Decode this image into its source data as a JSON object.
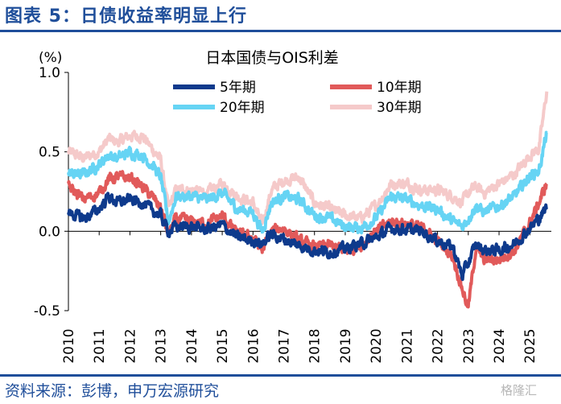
{
  "figure_title": "图表 5：日债收益率明显上行",
  "source": "资料来源：彭博，申万宏源研究",
  "watermark": "格隆汇",
  "chart_data": {
    "type": "line",
    "title": "日本国债与OIS利差",
    "ylabel": "(%)",
    "xlabel": "",
    "ylim": [
      -0.5,
      1.0
    ],
    "xlim": [
      2010.0,
      2025.7
    ],
    "y_ticks": [
      1.0,
      0.5,
      0.0,
      -0.5
    ],
    "y_tick_labels": [
      "1.0",
      "0.5",
      "0.0",
      "-0.5"
    ],
    "x_tick_labels": [
      "2010",
      "2011",
      "2012",
      "2013",
      "2014",
      "2015",
      "2016",
      "2017",
      "2018",
      "2019",
      "2020",
      "2021",
      "2022",
      "2023",
      "2024",
      "2025"
    ],
    "grid": false,
    "legend_position": "top",
    "series": [
      {
        "name": "5年期",
        "color": "#0e3a8c",
        "width": 4,
        "points": [
          [
            2010.0,
            0.12
          ],
          [
            2010.5,
            0.08
          ],
          [
            2011.0,
            0.14
          ],
          [
            2011.3,
            0.22
          ],
          [
            2011.6,
            0.18
          ],
          [
            2012.0,
            0.2
          ],
          [
            2012.4,
            0.18
          ],
          [
            2012.8,
            0.12
          ],
          [
            2013.0,
            0.1
          ],
          [
            2013.25,
            0.0
          ],
          [
            2013.5,
            0.03
          ],
          [
            2014.0,
            0.03
          ],
          [
            2014.5,
            0.01
          ],
          [
            2015.0,
            0.04
          ],
          [
            2015.5,
            -0.04
          ],
          [
            2016.0,
            -0.06
          ],
          [
            2016.3,
            -0.08
          ],
          [
            2016.6,
            -0.02
          ],
          [
            2017.0,
            -0.05
          ],
          [
            2017.5,
            -0.09
          ],
          [
            2018.0,
            -0.12
          ],
          [
            2018.5,
            -0.13
          ],
          [
            2019.0,
            -0.11
          ],
          [
            2019.5,
            -0.08
          ],
          [
            2020.0,
            -0.04
          ],
          [
            2020.5,
            0.02
          ],
          [
            2021.0,
            0.01
          ],
          [
            2021.5,
            0.0
          ],
          [
            2022.0,
            -0.06
          ],
          [
            2022.5,
            -0.1
          ],
          [
            2022.8,
            -0.28
          ],
          [
            2023.0,
            -0.2
          ],
          [
            2023.25,
            -0.08
          ],
          [
            2023.5,
            -0.12
          ],
          [
            2024.0,
            -0.12
          ],
          [
            2024.5,
            -0.08
          ],
          [
            2025.0,
            0.02
          ],
          [
            2025.3,
            0.08
          ],
          [
            2025.55,
            0.15
          ]
        ]
      },
      {
        "name": "10年期",
        "color": "#e15a5a",
        "width": 4,
        "points": [
          [
            2010.0,
            0.28
          ],
          [
            2010.5,
            0.2
          ],
          [
            2011.0,
            0.24
          ],
          [
            2011.3,
            0.33
          ],
          [
            2011.6,
            0.34
          ],
          [
            2012.0,
            0.34
          ],
          [
            2012.4,
            0.28
          ],
          [
            2012.8,
            0.2
          ],
          [
            2013.0,
            0.15
          ],
          [
            2013.25,
            -0.02
          ],
          [
            2013.5,
            0.08
          ],
          [
            2014.0,
            0.06
          ],
          [
            2014.5,
            0.05
          ],
          [
            2015.0,
            0.1
          ],
          [
            2015.5,
            -0.02
          ],
          [
            2016.0,
            -0.04
          ],
          [
            2016.3,
            -0.12
          ],
          [
            2016.6,
            0.0
          ],
          [
            2017.0,
            0.02
          ],
          [
            2017.5,
            -0.06
          ],
          [
            2018.0,
            -0.1
          ],
          [
            2018.5,
            -0.09
          ],
          [
            2019.0,
            -0.12
          ],
          [
            2019.5,
            -0.09
          ],
          [
            2020.0,
            0.0
          ],
          [
            2020.5,
            0.06
          ],
          [
            2021.0,
            0.05
          ],
          [
            2021.5,
            0.02
          ],
          [
            2022.0,
            -0.06
          ],
          [
            2022.5,
            -0.16
          ],
          [
            2022.8,
            -0.36
          ],
          [
            2023.0,
            -0.48
          ],
          [
            2023.25,
            -0.1
          ],
          [
            2023.5,
            -0.18
          ],
          [
            2024.0,
            -0.18
          ],
          [
            2024.5,
            -0.12
          ],
          [
            2025.0,
            0.05
          ],
          [
            2025.3,
            0.18
          ],
          [
            2025.55,
            0.3
          ]
        ]
      },
      {
        "name": "20年期",
        "color": "#66d4f4",
        "width": 4,
        "points": [
          [
            2010.0,
            0.36
          ],
          [
            2010.5,
            0.36
          ],
          [
            2011.0,
            0.42
          ],
          [
            2011.3,
            0.48
          ],
          [
            2011.6,
            0.46
          ],
          [
            2012.0,
            0.5
          ],
          [
            2012.4,
            0.48
          ],
          [
            2012.8,
            0.4
          ],
          [
            2013.0,
            0.34
          ],
          [
            2013.25,
            0.06
          ],
          [
            2013.5,
            0.22
          ],
          [
            2014.0,
            0.22
          ],
          [
            2014.5,
            0.2
          ],
          [
            2015.0,
            0.24
          ],
          [
            2015.5,
            0.14
          ],
          [
            2016.0,
            0.12
          ],
          [
            2016.3,
            0.0
          ],
          [
            2016.6,
            0.18
          ],
          [
            2017.0,
            0.22
          ],
          [
            2017.5,
            0.2
          ],
          [
            2018.0,
            0.1
          ],
          [
            2018.5,
            0.08
          ],
          [
            2019.0,
            0.03
          ],
          [
            2019.5,
            0.02
          ],
          [
            2020.0,
            0.08
          ],
          [
            2020.5,
            0.22
          ],
          [
            2021.0,
            0.2
          ],
          [
            2021.5,
            0.16
          ],
          [
            2022.0,
            0.14
          ],
          [
            2022.5,
            0.06
          ],
          [
            2022.8,
            0.03
          ],
          [
            2023.0,
            0.08
          ],
          [
            2023.25,
            0.16
          ],
          [
            2023.5,
            0.12
          ],
          [
            2024.0,
            0.16
          ],
          [
            2024.5,
            0.22
          ],
          [
            2025.0,
            0.35
          ],
          [
            2025.3,
            0.38
          ],
          [
            2025.55,
            0.62
          ]
        ]
      },
      {
        "name": "30年期",
        "color": "#f5caca",
        "width": 4,
        "points": [
          [
            2010.0,
            0.5
          ],
          [
            2010.5,
            0.46
          ],
          [
            2011.0,
            0.5
          ],
          [
            2011.3,
            0.58
          ],
          [
            2011.6,
            0.56
          ],
          [
            2012.0,
            0.6
          ],
          [
            2012.4,
            0.6
          ],
          [
            2012.8,
            0.5
          ],
          [
            2013.0,
            0.45
          ],
          [
            2013.25,
            0.14
          ],
          [
            2013.5,
            0.26
          ],
          [
            2014.0,
            0.26
          ],
          [
            2014.5,
            0.24
          ],
          [
            2015.0,
            0.3
          ],
          [
            2015.5,
            0.22
          ],
          [
            2016.0,
            0.18
          ],
          [
            2016.3,
            0.04
          ],
          [
            2016.6,
            0.26
          ],
          [
            2017.0,
            0.32
          ],
          [
            2017.5,
            0.34
          ],
          [
            2018.0,
            0.18
          ],
          [
            2018.5,
            0.14
          ],
          [
            2019.0,
            0.1
          ],
          [
            2019.5,
            0.08
          ],
          [
            2020.0,
            0.16
          ],
          [
            2020.5,
            0.3
          ],
          [
            2021.0,
            0.3
          ],
          [
            2021.5,
            0.26
          ],
          [
            2022.0,
            0.26
          ],
          [
            2022.5,
            0.22
          ],
          [
            2022.8,
            0.18
          ],
          [
            2023.0,
            0.24
          ],
          [
            2023.25,
            0.28
          ],
          [
            2023.5,
            0.24
          ],
          [
            2024.0,
            0.3
          ],
          [
            2024.5,
            0.36
          ],
          [
            2025.0,
            0.48
          ],
          [
            2025.3,
            0.52
          ],
          [
            2025.55,
            0.88
          ]
        ]
      }
    ]
  }
}
